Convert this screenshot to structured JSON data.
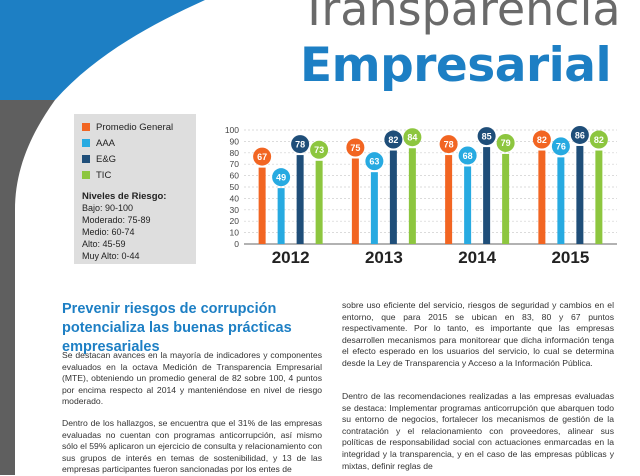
{
  "title": {
    "line1": "Transparencia",
    "line2": "Empresarial"
  },
  "legend": {
    "items": [
      {
        "label": "Promedio General",
        "color": "#f26522"
      },
      {
        "label": "AAA",
        "color": "#27aae1"
      },
      {
        "label": "E&G",
        "color": "#1f4e79"
      },
      {
        "label": "TIC",
        "color": "#8dc63f"
      }
    ],
    "risk_title": "Niveles de Riesgo:",
    "risk_levels": [
      "Bajo: 90-100",
      "Moderado: 75-89",
      "Medio: 60-74",
      "Alto: 45-59",
      "Muy Alto: 0-44"
    ]
  },
  "chart_data": {
    "type": "bar",
    "categories": [
      "2012",
      "2013",
      "2014",
      "2015"
    ],
    "series": [
      {
        "name": "Promedio General",
        "color": "#f26522",
        "values": [
          67,
          75,
          78,
          82
        ]
      },
      {
        "name": "AAA",
        "color": "#27aae1",
        "values": [
          49,
          63,
          68,
          76
        ]
      },
      {
        "name": "E&G",
        "color": "#1f4e79",
        "values": [
          78,
          82,
          85,
          86
        ]
      },
      {
        "name": "TIC",
        "color": "#8dc63f",
        "values": [
          73,
          84,
          79,
          82
        ]
      }
    ],
    "ylim": [
      0,
      100
    ],
    "yticks": [
      0,
      10,
      20,
      30,
      40,
      50,
      60,
      70,
      80,
      90,
      100
    ],
    "grid": true
  },
  "article": {
    "heading": "Prevenir riesgos de corrupción potencializa las buenas prácticas empresariales",
    "paragraphs": [
      "Se destacan avances en la mayoría de indicadores y componentes evaluados en la octava Medición de Transparencia Empresarial (MTE), obteniendo un promedio general de 82 sobre 100, 4 puntos por encima respecto al 2014 y manteniéndose en nivel de riesgo moderado.",
      "Dentro de los hallazgos, se encuentra que el 31% de las empresas evaluadas no cuentan con programas anticorrupción, así mismo sólo el 59% aplicaron un ejercicio de consulta y relacionamiento con sus grupos de interés en temas de sostenibilidad, y 13 de las empresas participantes fueron sancionadas por los entes de",
      "sobre uso eficiente del servicio, riesgos de seguridad y cambios en el entorno, que para 2015 se ubican en 83, 80 y 67 puntos respectivamente. Por lo tanto, es importante que las empresas desarrollen mecanismos para monitorear que dicha información tenga el efecto esperado en los usuarios del servicio, lo cual se determina desde la Ley de Transparencia y Acceso a la Información Pública.",
      "Dentro de las recomendaciones realizadas a las empresas evaluadas se destaca: Implementar programas anticorrupción que abarquen todo su entorno de negocios, fortalecer los mecanismos de gestión de la contratación y el relacionamiento con proveedores, alinear sus políticas de responsabilidad social con actuaciones enmarcadas en la integridad y la transparencia, y en el caso de las empresas públicas y mixtas, definir reglas de"
    ]
  }
}
